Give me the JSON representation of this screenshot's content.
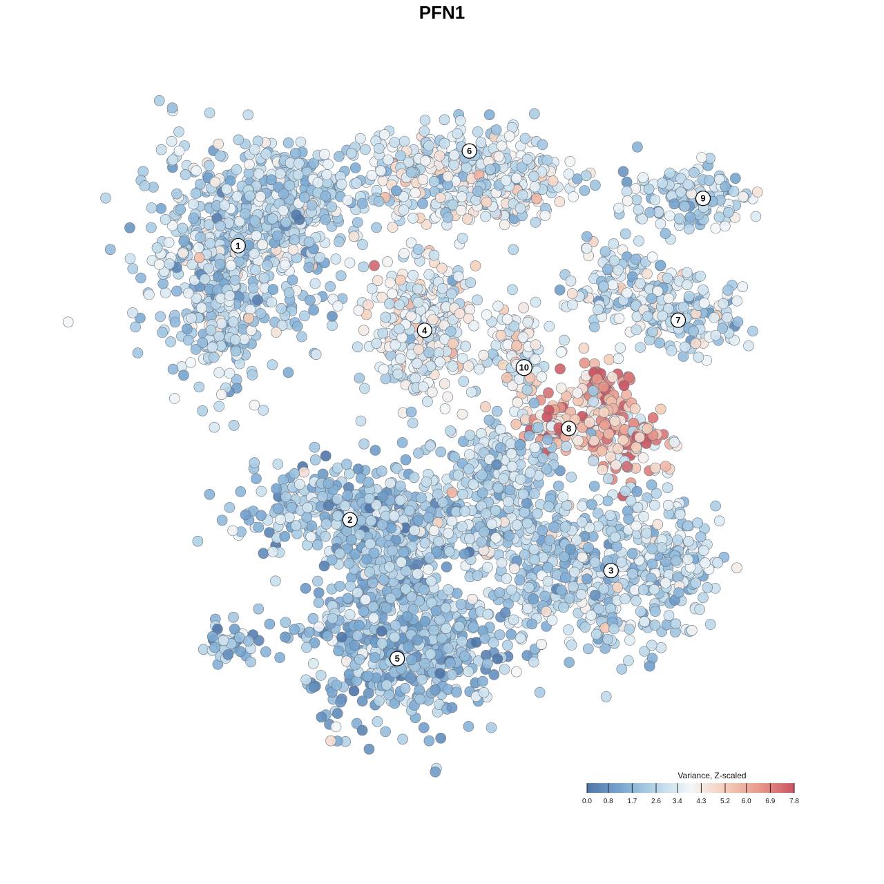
{
  "chart_data": {
    "type": "scatter",
    "title": "PFN1",
    "xlabel": "",
    "ylabel": "",
    "grid": false,
    "axes_visible": false,
    "legend": {
      "title": "Variance, Z-scaled",
      "placement": "bottom-right",
      "ticks": [
        "0.0",
        "0.8",
        "1.7",
        "2.6",
        "3.4",
        "4.3",
        "5.2",
        "6.0",
        "6.9",
        "7.8"
      ],
      "range": [
        0.0,
        7.8
      ],
      "colors": [
        "#4f75a8",
        "#79a8d2",
        "#b7d5e8",
        "#f4f7f9",
        "#f5cdb8",
        "#e9978a",
        "#c95562"
      ]
    },
    "clusters": [
      {
        "label": "1",
        "center": [
          -0.82,
          0.58
        ],
        "mean_value": 2.6
      },
      {
        "label": "2",
        "center": [
          -0.37,
          -0.23
        ],
        "mean_value": 2.2
      },
      {
        "label": "3",
        "center": [
          0.68,
          -0.38
        ],
        "mean_value": 2.6
      },
      {
        "label": "4",
        "center": [
          -0.07,
          0.33
        ],
        "mean_value": 3.6
      },
      {
        "label": "5",
        "center": [
          -0.18,
          -0.64
        ],
        "mean_value": 1.9
      },
      {
        "label": "6",
        "center": [
          0.11,
          0.86
        ],
        "mean_value": 3.4
      },
      {
        "label": "7",
        "center": [
          0.95,
          0.36
        ],
        "mean_value": 3.0
      },
      {
        "label": "8",
        "center": [
          0.51,
          0.04
        ],
        "mean_value": 5.6
      },
      {
        "label": "9",
        "center": [
          1.05,
          0.72
        ],
        "mean_value": 2.8
      },
      {
        "label": "10",
        "center": [
          0.33,
          0.22
        ],
        "mean_value": 3.7
      }
    ]
  }
}
